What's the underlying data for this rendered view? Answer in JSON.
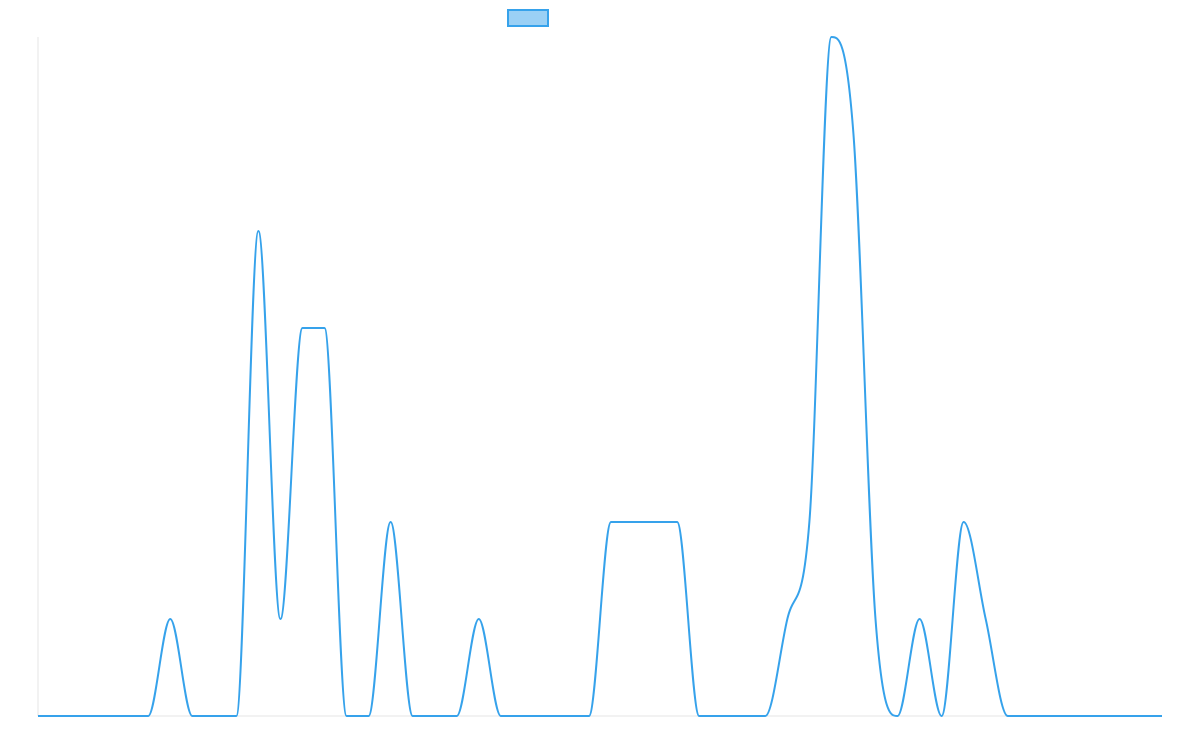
{
  "chart_data": {
    "type": "line",
    "title": "",
    "xlabel": "",
    "ylabel": "",
    "grid": false,
    "legend_position": "top-center",
    "x": [
      0,
      1,
      2,
      3,
      4,
      5,
      6,
      7,
      8,
      9,
      10,
      11,
      12,
      13,
      14,
      15,
      16,
      17,
      18,
      19,
      20,
      21,
      22,
      23,
      24,
      25,
      26,
      27,
      28,
      29,
      30,
      31,
      32,
      33,
      34,
      35,
      36,
      37,
      38,
      39,
      40,
      41,
      42,
      43,
      44,
      45,
      46,
      47,
      48,
      49,
      50,
      51
    ],
    "ylim": [
      0,
      7
    ],
    "series": [
      {
        "name": "",
        "color": "#36A2EB",
        "fill": "#9AD0F5",
        "values": [
          0,
          0,
          0,
          0,
          0,
          0,
          1,
          0,
          0,
          0,
          5,
          1,
          4,
          4,
          0,
          0,
          2,
          0,
          0,
          0,
          1,
          0,
          0,
          0,
          0,
          0,
          2,
          2,
          2,
          2,
          0,
          0,
          0,
          0,
          1,
          2,
          7,
          6,
          1,
          0,
          1,
          0,
          2,
          1,
          0,
          0,
          0,
          0,
          0,
          0,
          0,
          0
        ]
      }
    ]
  }
}
